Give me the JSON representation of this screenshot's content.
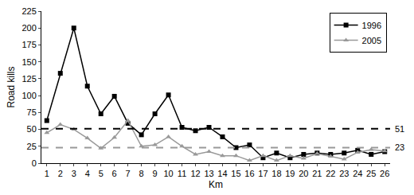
{
  "chart_data": {
    "type": "line",
    "x_label": "Km",
    "y_label": "Road kills",
    "x": [
      1,
      2,
      3,
      4,
      5,
      6,
      7,
      8,
      9,
      10,
      11,
      12,
      13,
      14,
      15,
      16,
      17,
      18,
      19,
      20,
      21,
      22,
      23,
      24,
      25,
      26
    ],
    "series": [
      {
        "name": "1996",
        "color": "#000000",
        "marker": "square",
        "line_style": "solid",
        "values": [
          63,
          133,
          200,
          114,
          73,
          99,
          59,
          42,
          73,
          101,
          53,
          48,
          53,
          39,
          23,
          27,
          8,
          15,
          8,
          13,
          15,
          13,
          15,
          19,
          13,
          17
        ]
      },
      {
        "name": "2005",
        "color": "#999999",
        "marker": "triangle-up",
        "line_style": "solid",
        "values": [
          45,
          57,
          50,
          37,
          22,
          38,
          63,
          25,
          27,
          39,
          25,
          13,
          17,
          11,
          11,
          4,
          11,
          4,
          11,
          7,
          14,
          10,
          6,
          16,
          20,
          18
        ]
      }
    ],
    "reference_lines": [
      {
        "value": 51,
        "color": "#000000",
        "line_style": "dash"
      },
      {
        "value": 23,
        "color": "#999999",
        "line_style": "dash"
      }
    ],
    "xlim": [
      0.6,
      26.4
    ],
    "xticks": [
      1,
      2,
      3,
      4,
      5,
      6,
      7,
      8,
      9,
      10,
      11,
      12,
      13,
      14,
      15,
      16,
      17,
      18,
      19,
      20,
      21,
      22,
      23,
      24,
      25,
      26
    ],
    "ylim": [
      0,
      225
    ],
    "yticks": [
      0,
      25,
      50,
      75,
      100,
      125,
      150,
      175,
      200,
      225
    ],
    "grid": false,
    "legend": "top right"
  }
}
